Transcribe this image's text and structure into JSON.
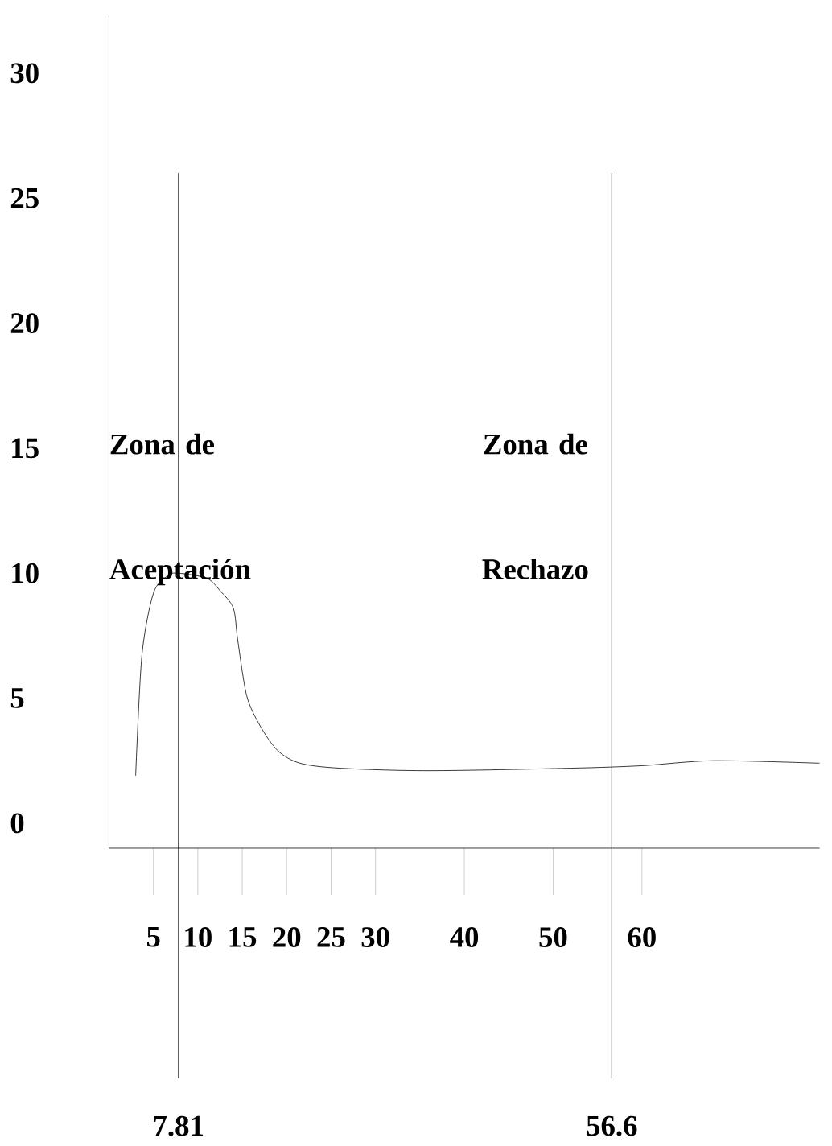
{
  "chart_data": {
    "type": "line",
    "x": [
      3,
      3.7,
      5,
      6.6,
      7.8,
      11,
      12.5,
      14,
      14.5,
      15.5,
      17,
      19,
      21.5,
      26,
      36,
      52,
      60,
      68,
      80
    ],
    "values": [
      1.9,
      6.7,
      9.2,
      9.9,
      10,
      9.8,
      9.3,
      8.6,
      7.3,
      5.1,
      3.9,
      2.9,
      2.4,
      2.2,
      2.1,
      2.2,
      2.3,
      2.5,
      2.4
    ],
    "color": "#000000",
    "xlim": [
      0,
      80
    ],
    "ylim": [
      -1,
      32.3
    ],
    "xticks": [
      5,
      10,
      15,
      20,
      25,
      30,
      40,
      50,
      60
    ],
    "yticks": [
      0,
      5,
      10,
      15,
      20,
      25,
      30
    ],
    "ref_lines": [
      {
        "axis": "x",
        "value": 7.81,
        "label": "7.81"
      },
      {
        "axis": "x",
        "value": 56.6,
        "label": "56.6"
      }
    ],
    "annotations": [
      "Zona de Aceptación",
      "Zona de Rechazo"
    ]
  }
}
